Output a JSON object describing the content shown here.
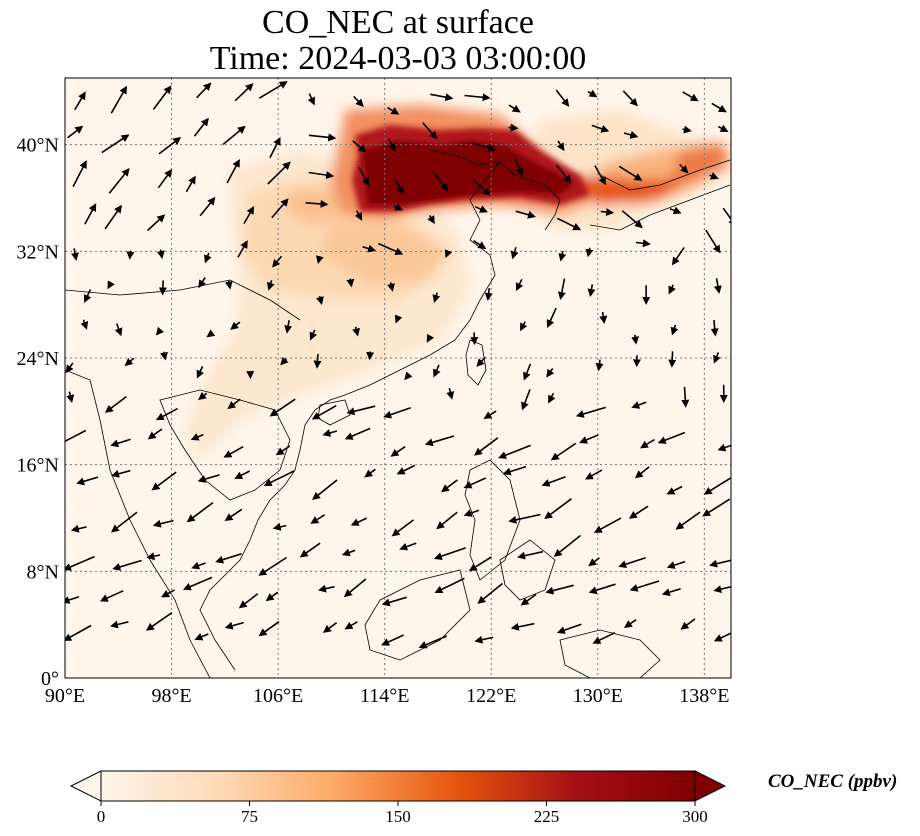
{
  "title": {
    "line1": "CO_NEC at surface",
    "line2": "Time: 2024-03-03 03:00:00"
  },
  "map": {
    "lon_range": [
      90,
      140
    ],
    "lat_range": [
      0,
      45
    ],
    "lon_ticks": [
      {
        "value": 90,
        "label": "90°E"
      },
      {
        "value": 98,
        "label": "98°E"
      },
      {
        "value": 106,
        "label": "106°E"
      },
      {
        "value": 114,
        "label": "114°E"
      },
      {
        "value": 122,
        "label": "122°E"
      },
      {
        "value": 130,
        "label": "130°E"
      },
      {
        "value": 138,
        "label": "138°E"
      }
    ],
    "lat_ticks": [
      {
        "value": 0,
        "label": "0°"
      },
      {
        "value": 8,
        "label": "8°N"
      },
      {
        "value": 16,
        "label": "16°N"
      },
      {
        "value": 24,
        "label": "24°N"
      },
      {
        "value": 32,
        "label": "32°N"
      },
      {
        "value": 40,
        "label": "40°N"
      }
    ],
    "gridlines": true,
    "background_color": "#fff5eb",
    "colormap": [
      "#fff5eb",
      "#fdd9b4",
      "#fda762",
      "#e6550d",
      "#a50f15",
      "#7f0000"
    ]
  },
  "colorbar": {
    "label": "CO_NEC (ppbv)",
    "range": [
      0,
      300
    ],
    "ticks": [
      "0",
      "75",
      "150",
      "225",
      "300"
    ],
    "extend": "both"
  }
}
